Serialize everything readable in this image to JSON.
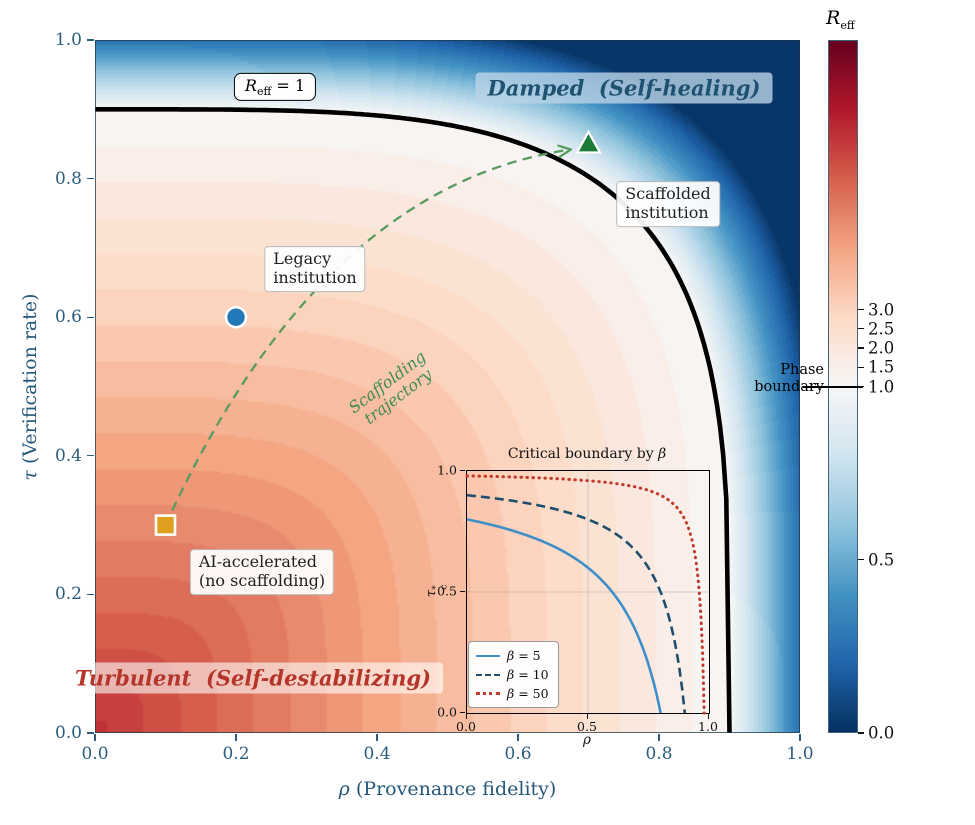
{
  "chart_data": {
    "type": "heatmap",
    "field_name": "R_eff",
    "xlabel": {
      "symbol": "ρ",
      "rest": " (Provenance fidelity)"
    },
    "ylabel": {
      "symbol": "τ",
      "rest": " (Verification rate)"
    },
    "xlim": [
      0,
      1
    ],
    "ylim": [
      0,
      1
    ],
    "x_ticks": [
      0.0,
      0.2,
      0.4,
      0.6,
      0.8,
      1.0
    ],
    "y_ticks": [
      0.0,
      0.2,
      0.4,
      0.6,
      0.8,
      1.0
    ],
    "norm": {
      "vmin": 0,
      "vcenter": 1,
      "vmax": 10
    },
    "surface": {
      "R_at_origin": 7.5,
      "boundary_radius": 0.9,
      "boundary_exponent": 4,
      "blue_falloff": 0.15,
      "contour_levels": 48
    },
    "colormap": {
      "name": "RdBu_r",
      "stops": [
        "#053061",
        "#2166ac",
        "#4393c3",
        "#92c5de",
        "#d1e5f0",
        "#f7f7f7",
        "#fddbc7",
        "#f4a582",
        "#d6604d",
        "#b2182b",
        "#67001f"
      ]
    },
    "phase_boundary": {
      "label": {
        "R": "R",
        "sub": "eff",
        "eq": " = 1"
      },
      "tau_intercept": 0.9,
      "rho_intercept": 0.9,
      "color": "#000000",
      "width": 4.6
    },
    "regions": {
      "damped": {
        "text": "Damped  (Self-healing)",
        "color": "#1d5270"
      },
      "turbulent": {
        "text": "Turbulent  (Self-destabilizing)",
        "color": "#b5352a"
      }
    },
    "markers": [
      {
        "id": "ai-accelerated",
        "shape": "square",
        "rho": 0.1,
        "tau": 0.3,
        "color": "#dfa01f",
        "label_line1": "AI-accelerated",
        "label_line2": "(no scaffolding)"
      },
      {
        "id": "legacy",
        "shape": "circle",
        "rho": 0.2,
        "tau": 0.6,
        "color": "#2379b8",
        "label_line1": "Legacy",
        "label_line2": "institution"
      },
      {
        "id": "scaffolded",
        "shape": "triangle",
        "rho": 0.7,
        "tau": 0.85,
        "color": "#1e7c3a",
        "label_line1": "Scaffolded",
        "label_line2": "institution"
      }
    ],
    "trajectory": {
      "label_line1": "Scaffolding",
      "label_line2": "trajectory",
      "color": "#579b5f",
      "text_color": "#3f8c52",
      "from": [
        0.1,
        0.3
      ],
      "control": [
        0.32,
        0.79
      ],
      "to": [
        0.675,
        0.842
      ]
    },
    "colorbar": {
      "title": {
        "R": "R",
        "sub": "eff"
      },
      "ticks": [
        3.0,
        2.5,
        2.0,
        1.5,
        1.0,
        0.5,
        0.0
      ],
      "annotation_line1": "Phase",
      "annotation_line2": "boundary",
      "center_value": 1.0
    },
    "inset": {
      "type": "line",
      "title": {
        "text": "Critical boundary by ",
        "symbol": "β"
      },
      "xlabel": "ρ",
      "ylabel": {
        "symbol": "τ",
        "sup": "*",
        "sub": "c"
      },
      "xlim": [
        0,
        1
      ],
      "ylim": [
        0,
        1
      ],
      "x_ticks": [
        0.0,
        0.5,
        1.0
      ],
      "y_ticks": [
        0.0,
        0.5,
        1.0
      ],
      "grid": true,
      "legend_position": "lower left",
      "series": [
        {
          "sym": "β",
          "eq": " = 5",
          "beta": 5,
          "style": "solid",
          "color": "#3d8ec9",
          "tau_at_rho0": 0.8,
          "rho_at_tau0": 0.8
        },
        {
          "sym": "β",
          "eq": " = 10",
          "beta": 10,
          "style": "dashed",
          "color": "#1f4e6e",
          "tau_at_rho0": 0.9,
          "rho_at_tau0": 0.9
        },
        {
          "sym": "β",
          "eq": " = 50",
          "beta": 50,
          "style": "dotted",
          "color": "#c0392b",
          "tau_at_rho0": 0.98,
          "rho_at_tau0": 0.98
        }
      ]
    }
  }
}
